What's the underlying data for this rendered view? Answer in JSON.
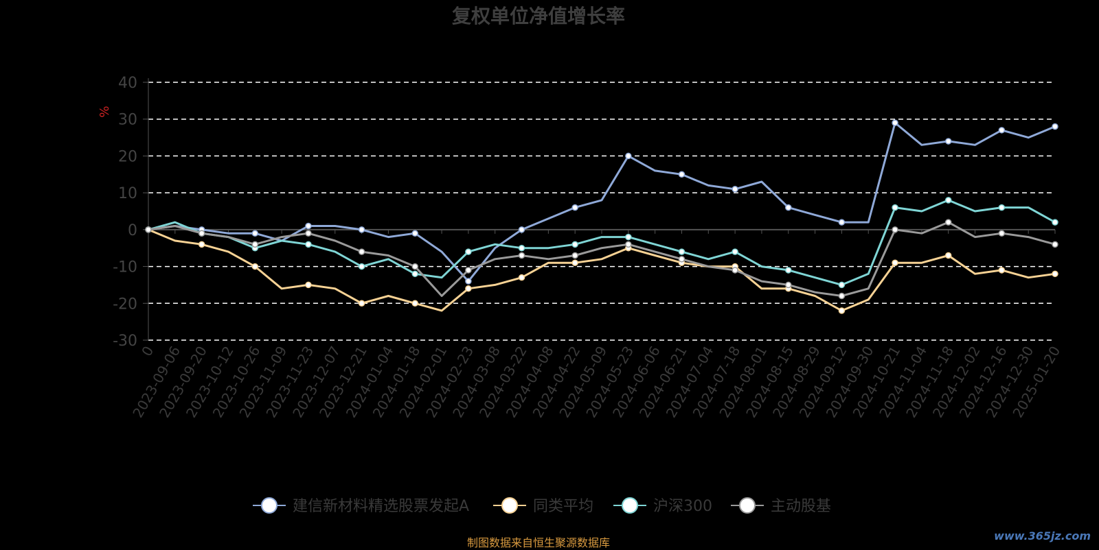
{
  "title": "复权单位净值增长率",
  "source_note": "制图数据来自恒生聚源数据库",
  "watermark": "www.365jz.com",
  "chart_data": {
    "type": "line",
    "ylabel": "%",
    "ylim": [
      -30,
      40
    ],
    "yticks": [
      40,
      30,
      20,
      10,
      0,
      -10,
      -20,
      -30
    ],
    "grid": true,
    "legend_position": "bottom",
    "x_tick_labels": [
      "0",
      "2023-09-06",
      "2023-09-20",
      "2023-10-12",
      "2023-10-26",
      "2023-11-09",
      "2023-11-23",
      "2023-12-07",
      "2023-12-21",
      "2024-01-04",
      "2024-01-18",
      "2024-02-01",
      "2024-02-23",
      "2024-03-08",
      "2024-03-22",
      "2024-04-08",
      "2024-04-22",
      "2024-05-09",
      "2024-05-23",
      "2024-06-06",
      "2024-06-21",
      "2024-07-04",
      "2024-07-18",
      "2024-08-01",
      "2024-08-15",
      "2024-08-29",
      "2024-09-12",
      "2024-09-30",
      "2024-10-21",
      "2024-11-04",
      "2024-11-18",
      "2024-12-02",
      "2024-12-16",
      "2024-12-30",
      "2025-01-20"
    ],
    "series": [
      {
        "name": "建信新材料精选股票发起A",
        "color": "#8fa9d8",
        "values": [
          0,
          1,
          0,
          -1,
          -1,
          -3,
          1,
          1,
          0,
          -2,
          -1,
          -6,
          -14,
          -5,
          0,
          3,
          6,
          8,
          20,
          16,
          15,
          12,
          11,
          13,
          6,
          4,
          2,
          2,
          29,
          23,
          24,
          23,
          27,
          25,
          28
        ]
      },
      {
        "name": "同类平均",
        "color": "#f7d294",
        "values": [
          0,
          -3,
          -4,
          -6,
          -10,
          -16,
          -15,
          -16,
          -20,
          -18,
          -20,
          -22,
          -16,
          -15,
          -13,
          -9,
          -9,
          -8,
          -5,
          -7,
          -9,
          -10,
          -10,
          -16,
          -16,
          -18,
          -22,
          -19,
          -9,
          -9,
          -7,
          -12,
          -11,
          -13,
          -12
        ]
      },
      {
        "name": "沪深300",
        "color": "#7fd5d5",
        "values": [
          0,
          2,
          -1,
          -2,
          -5,
          -3,
          -4,
          -6,
          -10,
          -8,
          -12,
          -13,
          -6,
          -4,
          -5,
          -5,
          -4,
          -2,
          -2,
          -4,
          -6,
          -8,
          -6,
          -10,
          -11,
          -13,
          -15,
          -12,
          6,
          5,
          8,
          5,
          6,
          6,
          2
        ]
      },
      {
        "name": "主动股基",
        "color": "#9a9a9a",
        "values": [
          0,
          1,
          -1,
          -2,
          -4,
          -2,
          -1,
          -3,
          -6,
          -7,
          -10,
          -18,
          -11,
          -8,
          -7,
          -8,
          -7,
          -5,
          -4,
          -6,
          -8,
          -10,
          -11,
          -14,
          -15,
          -17,
          -18,
          -16,
          0,
          -1,
          2,
          -2,
          -1,
          -2,
          -4
        ]
      }
    ]
  }
}
